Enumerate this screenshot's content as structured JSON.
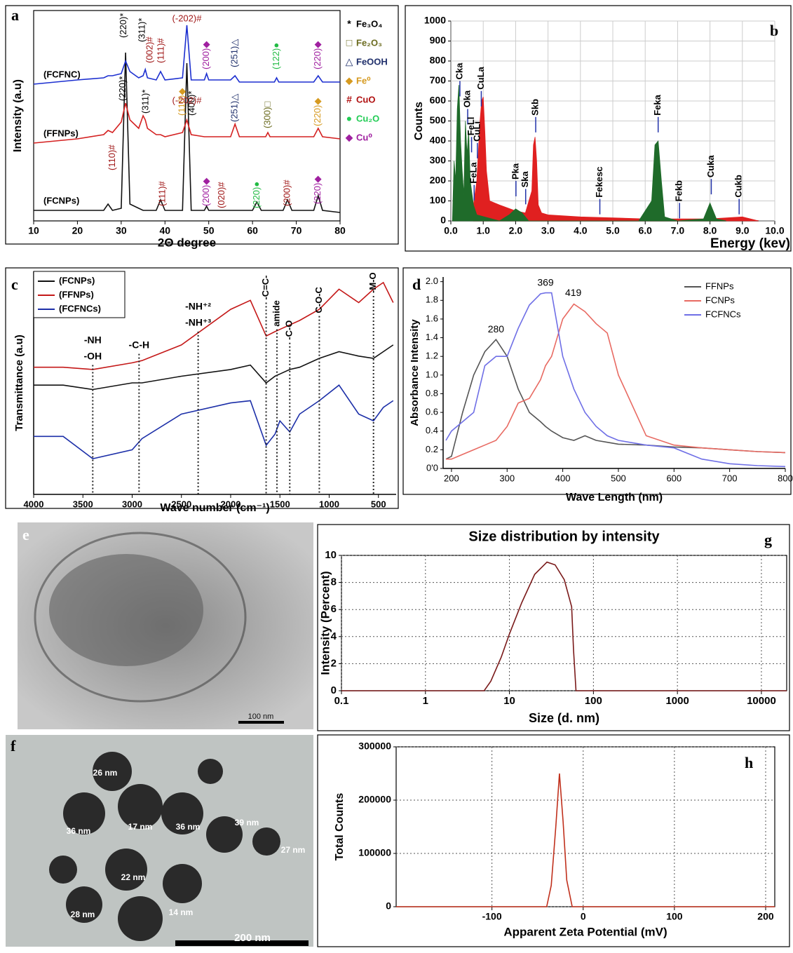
{
  "chart_data": [
    {
      "panel_label": "a",
      "type": "line",
      "xlabel": "2Θ degree",
      "ylabel": "Intensity (a.u)",
      "xlim": [
        10,
        80
      ],
      "xticks": [
        10,
        20,
        30,
        40,
        50,
        60,
        70,
        80
      ],
      "ylim": [
        0,
        100
      ],
      "x": [
        10,
        20,
        26,
        27,
        28,
        30,
        31,
        32,
        34,
        35,
        35.5,
        36,
        38,
        39,
        40,
        44,
        45,
        46,
        49,
        49.5,
        50,
        55,
        56,
        57,
        60,
        61,
        62,
        63,
        63.5,
        64,
        65,
        65.5,
        66,
        67,
        68,
        69,
        74,
        75,
        76,
        80
      ],
      "series": [
        {
          "name": "(FCNPs)",
          "color": "#111111",
          "values": [
            5,
            5,
            5,
            8,
            5,
            6,
            80,
            8,
            6,
            5,
            5,
            5,
            5,
            10,
            5,
            5,
            75,
            5,
            5,
            7,
            5,
            5,
            5,
            5,
            5,
            9,
            5,
            5,
            5,
            5,
            5,
            5,
            5,
            5,
            10,
            5,
            5,
            12,
            5,
            4
          ]
        },
        {
          "name": "(FFNPs)",
          "color": "#d42020",
          "values": [
            37,
            39,
            41,
            43,
            42,
            47,
            56,
            48,
            44,
            50,
            48,
            44,
            41,
            41,
            40,
            42,
            48,
            41,
            40,
            40,
            40,
            40,
            46,
            40,
            40,
            40,
            40,
            40,
            42,
            40,
            40,
            40,
            40,
            40,
            40,
            40,
            40,
            44,
            40,
            39
          ]
        },
        {
          "name": "(FCFNC)",
          "color": "#1c2fd0",
          "values": [
            65,
            67,
            68,
            69,
            69,
            70,
            76,
            71,
            68,
            69,
            72,
            68,
            67,
            71,
            67,
            68,
            93,
            67,
            67,
            70,
            67,
            67,
            69,
            66,
            66,
            66,
            66,
            66,
            66,
            66,
            66,
            68,
            66,
            66,
            66,
            66,
            66,
            69,
            66,
            66
          ]
        }
      ],
      "peak_labels": [
        {
          "text": "(220)*",
          "x": 30.6,
          "y": 87,
          "color": "#000000"
        },
        {
          "text": "(311)*",
          "x": 34.8,
          "y": 85,
          "color": "#000000"
        },
        {
          "text": "(002)#",
          "x": 36.6,
          "y": 75,
          "color": "#a01818"
        },
        {
          "text": "(111)#",
          "x": 39.2,
          "y": 75,
          "color": "#a01818"
        },
        {
          "text": "(-202)#",
          "x": 45,
          "y": 96,
          "color": "#a01818"
        },
        {
          "text": "(200)◆",
          "x": 49.5,
          "y": 72,
          "color": "#a020a0"
        },
        {
          "text": "(251)△",
          "x": 56,
          "y": 73,
          "color": "#1f2f6b"
        },
        {
          "text": "(122)●",
          "x": 65.5,
          "y": 72,
          "color": "#22bb44"
        },
        {
          "text": "(220)◆",
          "x": 75,
          "y": 72,
          "color": "#a020a0"
        },
        {
          "text": "(220)*",
          "x": 30.4,
          "y": 57,
          "color": "#000000"
        },
        {
          "text": "(311)*",
          "x": 35.6,
          "y": 51,
          "color": "#000000"
        },
        {
          "text": "(110)◆",
          "x": 44,
          "y": 50,
          "color": "#d69a20"
        },
        {
          "text": "(400)*",
          "x": 46.2,
          "y": 50,
          "color": "#000000"
        },
        {
          "text": "(251)△",
          "x": 56,
          "y": 47,
          "color": "#1f2f6b"
        },
        {
          "text": "(300)□",
          "x": 63.5,
          "y": 44,
          "color": "#6b6b1f"
        },
        {
          "text": "(220)◆",
          "x": 75,
          "y": 45,
          "color": "#d69a20"
        },
        {
          "text": "(110)#",
          "x": 28,
          "y": 24,
          "color": "#a01818"
        },
        {
          "text": "(-202)#",
          "x": 45,
          "y": 57,
          "color": "#a01818"
        },
        {
          "text": "(111)#",
          "x": 39.5,
          "y": 7,
          "color": "#a01818"
        },
        {
          "text": "(200)◆",
          "x": 49.5,
          "y": 7,
          "color": "#a020a0"
        },
        {
          "text": "(020)#",
          "x": 53,
          "y": 6,
          "color": "#a01818"
        },
        {
          "text": "(220)●",
          "x": 61,
          "y": 6,
          "color": "#22bb44"
        },
        {
          "text": "(200)#",
          "x": 68,
          "y": 7,
          "color": "#a01818"
        },
        {
          "text": "(220)◆",
          "x": 75,
          "y": 8,
          "color": "#a020a0"
        }
      ],
      "phase_legend": [
        {
          "symbol": "*",
          "label": "Fe₃O₄",
          "color": "#000000"
        },
        {
          "symbol": "□",
          "label": "Fe₂O₃",
          "color": "#6b6b1f"
        },
        {
          "symbol": "△",
          "label": "FeOOH",
          "color": "#1f2f6b"
        },
        {
          "symbol": "◆",
          "label": "Fe⁰",
          "color": "#d69a20"
        },
        {
          "symbol": "#",
          "label": "CuO",
          "color": "#b01010"
        },
        {
          "symbol": "●",
          "label": "Cu₂O",
          "color": "#22cc55"
        },
        {
          "symbol": "◆",
          "label": "Cu⁰",
          "color": "#a020a0"
        }
      ]
    },
    {
      "panel_label": "b",
      "type": "area",
      "xlabel": "Energy (kev)",
      "ylabel": "Counts",
      "grid": true,
      "xlim": [
        0,
        10
      ],
      "ylim": [
        0,
        1000
      ],
      "xticks": [
        {
          "value": 0,
          "label": "0.0"
        },
        {
          "value": 1,
          "label": "1.0"
        },
        {
          "value": 2,
          "label": "2.0"
        },
        {
          "value": 3,
          "label": "3.0"
        },
        {
          "value": 4,
          "label": "4.0"
        },
        {
          "value": 5,
          "label": "5.0"
        },
        {
          "value": 6,
          "label": "6.0"
        },
        {
          "value": 7,
          "label": "7.0"
        },
        {
          "value": 8,
          "label": "8.0"
        },
        {
          "value": 9,
          "label": "9.0"
        },
        {
          "value": 10,
          "label": "10.0"
        }
      ],
      "yticks": [
        0,
        100,
        200,
        300,
        400,
        500,
        600,
        700,
        800,
        900,
        1000
      ],
      "series": [
        {
          "color": "#e02020",
          "x": [
            0.7,
            0.8,
            0.9,
            0.95,
            1.0,
            1.05,
            1.1,
            1.2,
            1.5,
            2.0,
            2.3,
            2.5,
            2.55,
            2.6,
            2.65,
            2.7,
            2.8,
            3.0,
            4.0,
            5.0,
            6.0,
            7.0,
            8.0,
            9.0,
            9.5
          ],
          "values": [
            80,
            200,
            500,
            600,
            620,
            450,
            250,
            100,
            80,
            50,
            40,
            150,
            380,
            420,
            300,
            80,
            40,
            30,
            20,
            15,
            10,
            10,
            10,
            20,
            0
          ]
        },
        {
          "color": "#1f6b2a",
          "x": [
            0.05,
            0.1,
            0.15,
            0.2,
            0.25,
            0.3,
            0.35,
            0.4,
            0.45,
            0.5,
            0.55,
            0.6,
            0.7,
            0.8,
            1.5,
            1.8,
            2.0,
            2.2,
            2.4,
            5.8,
            6.2,
            6.3,
            6.4,
            6.5,
            6.6,
            7.0,
            7.8,
            7.9,
            8.0,
            8.1,
            8.2,
            8.5
          ],
          "values": [
            0,
            300,
            200,
            560,
            680,
            400,
            250,
            130,
            500,
            330,
            450,
            200,
            80,
            30,
            0,
            30,
            60,
            40,
            0,
            0,
            100,
            380,
            400,
            200,
            20,
            0,
            10,
            50,
            90,
            50,
            10,
            0
          ]
        }
      ],
      "line_labels": [
        {
          "text": "Cka",
          "x": 0.28,
          "y": 700
        },
        {
          "text": "Oka",
          "x": 0.52,
          "y": 560
        },
        {
          "text": "FeLl",
          "x": 0.64,
          "y": 420
        },
        {
          "text": "FeLa",
          "x": 0.72,
          "y": 180
        },
        {
          "text": "CuLi",
          "x": 0.82,
          "y": 390
        },
        {
          "text": "CuLa",
          "x": 0.94,
          "y": 650
        },
        {
          "text": "Pka",
          "x": 2.01,
          "y": 200
        },
        {
          "text": "Ska",
          "x": 2.31,
          "y": 160
        },
        {
          "text": "Skb",
          "x": 2.62,
          "y": 520
        },
        {
          "text": "Fekesc",
          "x": 4.6,
          "y": 110
        },
        {
          "text": "Feka",
          "x": 6.4,
          "y": 520
        },
        {
          "text": "Fekb",
          "x": 7.06,
          "y": 90
        },
        {
          "text": "Cuka",
          "x": 8.04,
          "y": 210
        },
        {
          "text": "Cukb",
          "x": 8.9,
          "y": 110
        }
      ]
    },
    {
      "panel_label": "c",
      "type": "line",
      "xlabel": "Wave number (cm⁻¹)",
      "ylabel": "Transmittance (a.u)",
      "legend": "upper left",
      "xlim": [
        4000,
        320
      ],
      "xticks": [
        4000,
        3500,
        3000,
        2500,
        2000,
        1500,
        1000,
        500
      ],
      "ylim": [
        0,
        100
      ],
      "x": [
        4000,
        3700,
        3400,
        3000,
        2900,
        2500,
        2000,
        1800,
        1640,
        1550,
        1500,
        1400,
        1300,
        1100,
        900,
        700,
        550,
        450,
        350
      ],
      "series": [
        {
          "name": "(FCNPs)",
          "color": "#111111",
          "values": [
            49,
            49,
            47,
            50,
            50,
            53,
            56,
            58,
            50,
            53,
            54,
            56,
            57,
            61,
            64,
            62,
            61,
            64,
            67
          ]
        },
        {
          "name": "(FFNPs)",
          "color": "#c41818",
          "values": [
            57,
            57,
            56,
            59,
            60,
            67,
            83,
            87,
            71,
            73,
            74,
            76,
            78,
            83,
            92,
            86,
            92,
            95,
            86
          ]
        },
        {
          "name": "(FCFNCs)",
          "color": "#1c2fa8",
          "values": [
            26,
            26,
            16,
            20,
            25,
            36,
            41,
            42,
            22,
            27,
            33,
            28,
            36,
            42,
            49,
            36,
            33,
            39,
            42
          ]
        }
      ],
      "bands": [
        {
          "x": 3400,
          "y": 58,
          "labels": [
            "-NH",
            "-OH"
          ]
        },
        {
          "x": 2930,
          "y": 63,
          "labels": [
            "-C-H"
          ]
        },
        {
          "x": 2330,
          "y": 73,
          "labels": [
            "-NH⁺²",
            "-NH⁺³"
          ]
        },
        {
          "x": 1640,
          "y": 86,
          "labels": [
            "-C=C-"
          ]
        },
        {
          "x": 1530,
          "y": 74,
          "labels": [
            "amide"
          ]
        },
        {
          "x": 1400,
          "y": 68,
          "labels": [
            "-C-O"
          ]
        },
        {
          "x": 1100,
          "y": 80,
          "labels": [
            "C-O-C"
          ]
        },
        {
          "x": 550,
          "y": 89,
          "labels": [
            "-M-O"
          ]
        }
      ]
    },
    {
      "panel_label": "d",
      "type": "line",
      "xlabel": "Wave Length (nm)",
      "ylabel": "Absorbance Intensity",
      "legend": "upper right",
      "xlim": [
        185,
        800
      ],
      "xticks": [
        200,
        300,
        400,
        500,
        600,
        700,
        800
      ],
      "ylim": [
        0,
        2.05
      ],
      "yticks": [
        {
          "value": 0,
          "label": "0'0"
        },
        0.2,
        0.4,
        0.6,
        0.8,
        {
          "value": 1,
          "label": "1.0"
        },
        1.2,
        1.4,
        1.6,
        1.8,
        {
          "value": 2,
          "label": "2.0"
        }
      ],
      "x": [
        190,
        200,
        220,
        240,
        260,
        280,
        300,
        320,
        340,
        360,
        369,
        380,
        400,
        420,
        440,
        460,
        480,
        500,
        550,
        600,
        650,
        700,
        750,
        800
      ],
      "series": [
        {
          "name": "FFNPs",
          "color": "#555555",
          "values": [
            0.1,
            0.13,
            0.6,
            1.0,
            1.25,
            1.38,
            1.2,
            0.85,
            0.6,
            0.5,
            0.45,
            0.4,
            0.33,
            0.3,
            0.35,
            0.3,
            0.28,
            0.26,
            0.25,
            0.23,
            0.22,
            0.2,
            0.18,
            0.17
          ]
        },
        {
          "name": "FCNPs",
          "color": "#e86a62",
          "values": [
            0.1,
            0.1,
            0.15,
            0.2,
            0.25,
            0.3,
            0.45,
            0.7,
            0.75,
            0.95,
            1.1,
            1.2,
            1.6,
            1.76,
            1.68,
            1.55,
            1.45,
            1.0,
            0.35,
            0.25,
            0.22,
            0.2,
            0.18,
            0.17
          ]
        },
        {
          "name": "FCFNCs",
          "color": "#6f6fe6",
          "values": [
            0.3,
            0.4,
            0.5,
            0.6,
            1.1,
            1.2,
            1.2,
            1.5,
            1.75,
            1.87,
            1.88,
            1.88,
            1.2,
            0.85,
            0.6,
            0.45,
            0.35,
            0.3,
            0.25,
            0.22,
            0.1,
            0.05,
            0.03,
            0.02
          ]
        }
      ],
      "peaks": [
        {
          "x": 280,
          "y": 1.38
        },
        {
          "x": 369,
          "y": 1.88
        },
        {
          "x": 419,
          "y": 1.77
        }
      ]
    },
    {
      "panel_label": "g",
      "type": "line",
      "title": "Size distribution by intensity",
      "xlabel": "Size (d. nm)",
      "ylabel": "Intensity (Percent)",
      "grid": true,
      "xscale": "log",
      "xlim": [
        0.1,
        20000
      ],
      "xticks": [
        0.1,
        1,
        10,
        100,
        1000,
        10000
      ],
      "ylim": [
        0,
        10
      ],
      "yticks": [
        0,
        2,
        4,
        6,
        8,
        10
      ],
      "x": [
        0.1,
        5,
        6,
        8,
        10,
        14,
        20,
        28,
        35,
        45,
        55,
        58,
        62,
        70,
        20000
      ],
      "values": [
        0,
        0,
        0.7,
        2.5,
        4.2,
        6.5,
        8.6,
        9.5,
        9.3,
        8.2,
        6.2,
        3,
        0,
        0,
        0
      ],
      "color": "#7a1a1a"
    },
    {
      "panel_label": "h",
      "type": "line",
      "xlabel": "Apparent  Zeta Potential (mV)",
      "ylabel": "Total Counts",
      "grid": true,
      "xlim": [
        -205,
        210
      ],
      "xticks": [
        -100,
        0,
        100,
        200
      ],
      "ylim": [
        0,
        300000
      ],
      "yticks": [
        0,
        100000,
        200000,
        300000
      ],
      "x": [
        -205,
        -40,
        -35,
        -30,
        -26,
        -22,
        -18,
        -12,
        210
      ],
      "values": [
        0,
        0,
        40000,
        150000,
        250000,
        160000,
        50000,
        0,
        0
      ],
      "color": "#c0301c"
    }
  ],
  "images": [
    {
      "panel_label": "e",
      "scale_bar": "100 nm"
    },
    {
      "panel_label": "f",
      "size_labels": [
        "26 nm",
        "36 nm",
        "17 nm",
        "36 nm",
        "39 nm",
        "27 nm",
        "22 nm",
        "14 nm",
        "28 nm"
      ],
      "scale_bar": "200 nm"
    }
  ]
}
